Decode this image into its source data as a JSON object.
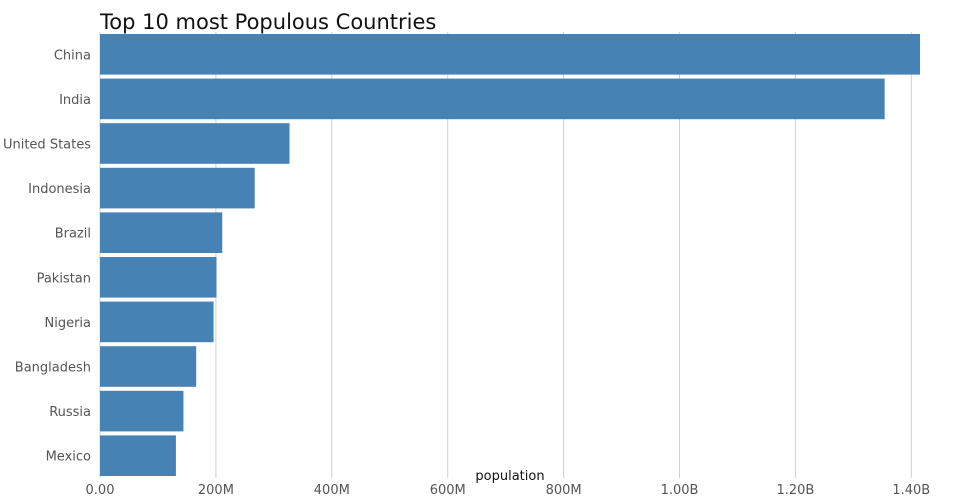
{
  "chart_data": {
    "type": "bar",
    "orientation": "horizontal",
    "title": "Top 10 most Populous Countries",
    "xlabel": "population",
    "ylabel": "",
    "categories": [
      "China",
      "India",
      "United States",
      "Indonesia",
      "Brazil",
      "Pakistan",
      "Nigeria",
      "Bangladesh",
      "Russia",
      "Mexico"
    ],
    "values": [
      1415000000,
      1354000000,
      327000000,
      267000000,
      211000000,
      201000000,
      196000000,
      166000000,
      144000000,
      131000000
    ],
    "xlim": [
      0,
      1415000000
    ],
    "xticks": [
      0,
      200000000,
      400000000,
      600000000,
      800000000,
      1000000000,
      1200000000,
      1400000000
    ],
    "xtick_labels": [
      "0.00",
      "200M",
      "400M",
      "600M",
      "800M",
      "1.00B",
      "1.20B",
      "1.40B"
    ],
    "bar_color": "#4682b4",
    "grid": true,
    "legend": "none"
  }
}
